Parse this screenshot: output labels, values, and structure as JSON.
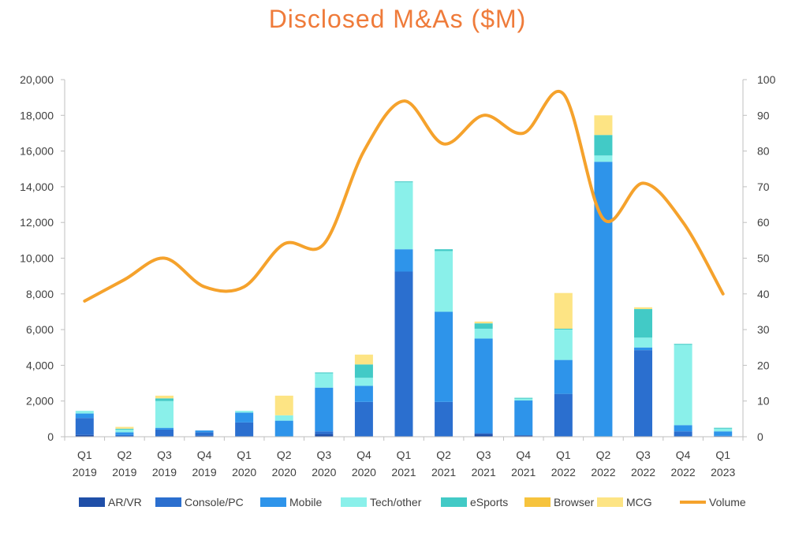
{
  "chart_data": {
    "type": "bar",
    "title": "Disclosed M&As ($M)",
    "xlabel": "",
    "ylabel": "",
    "categories": [
      {
        "q": "Q1",
        "y": "2019"
      },
      {
        "q": "Q2",
        "y": "2019"
      },
      {
        "q": "Q3",
        "y": "2019"
      },
      {
        "q": "Q4",
        "y": "2019"
      },
      {
        "q": "Q1",
        "y": "2020"
      },
      {
        "q": "Q2",
        "y": "2020"
      },
      {
        "q": "Q3",
        "y": "2020"
      },
      {
        "q": "Q4",
        "y": "2020"
      },
      {
        "q": "Q1",
        "y": "2021"
      },
      {
        "q": "Q2",
        "y": "2021"
      },
      {
        "q": "Q3",
        "y": "2021"
      },
      {
        "q": "Q4",
        "y": "2021"
      },
      {
        "q": "Q1",
        "y": "2022"
      },
      {
        "q": "Q2",
        "y": "2022"
      },
      {
        "q": "Q3",
        "y": "2022"
      },
      {
        "q": "Q4",
        "y": "2022"
      },
      {
        "q": "Q1",
        "y": "2023"
      }
    ],
    "ylim_left": [
      0,
      20000
    ],
    "yticks_left": [
      "0",
      "2,000",
      "4,000",
      "6,000",
      "8,000",
      "10,000",
      "12,000",
      "14,000",
      "16,000",
      "18,000",
      "20,000"
    ],
    "ylim_right": [
      0,
      100
    ],
    "yticks_right": [
      "0",
      "10",
      "20",
      "30",
      "40",
      "50",
      "60",
      "70",
      "80",
      "90",
      "100"
    ],
    "legend_position": "bottom",
    "grid": false,
    "series": [
      {
        "name": "AR/VR",
        "color": "#1f4fa8",
        "values": [
          100,
          0,
          0,
          50,
          0,
          0,
          150,
          0,
          0,
          0,
          150,
          80,
          0,
          0,
          0,
          0,
          0
        ]
      },
      {
        "name": "Console/PC",
        "color": "#2b6fcf",
        "values": [
          950,
          100,
          400,
          200,
          800,
          0,
          150,
          1950,
          9250,
          1950,
          50,
          0,
          2400,
          0,
          4850,
          300,
          50
        ]
      },
      {
        "name": "Mobile",
        "color": "#2e94ea",
        "values": [
          250,
          150,
          100,
          100,
          550,
          900,
          2450,
          900,
          1250,
          5050,
          5300,
          1950,
          1900,
          15400,
          150,
          350,
          250
        ]
      },
      {
        "name": "Tech/other",
        "color": "#8af0ea",
        "values": [
          150,
          150,
          1500,
          0,
          100,
          300,
          800,
          450,
          3750,
          3400,
          550,
          100,
          1700,
          350,
          550,
          4500,
          150
        ]
      },
      {
        "name": "eSports",
        "color": "#42cac6",
        "values": [
          0,
          50,
          150,
          0,
          0,
          0,
          50,
          750,
          50,
          100,
          300,
          50,
          50,
          1150,
          1600,
          50,
          50
        ]
      },
      {
        "name": "Browser",
        "color": "#f6c33d",
        "values": [
          0,
          0,
          0,
          0,
          0,
          0,
          0,
          0,
          0,
          0,
          0,
          0,
          0,
          0,
          0,
          0,
          0
        ]
      },
      {
        "name": "MCG",
        "color": "#fde484",
        "values": [
          0,
          100,
          150,
          0,
          0,
          1100,
          0,
          550,
          0,
          0,
          100,
          0,
          2000,
          1100,
          100,
          0,
          0
        ]
      }
    ],
    "line_series": {
      "name": "Volume",
      "color": "#f5a22c",
      "axis": "right",
      "values": [
        38,
        44,
        50,
        42,
        42,
        54,
        54,
        80,
        94,
        82,
        90,
        85,
        96,
        61,
        71,
        60,
        40
      ]
    }
  }
}
